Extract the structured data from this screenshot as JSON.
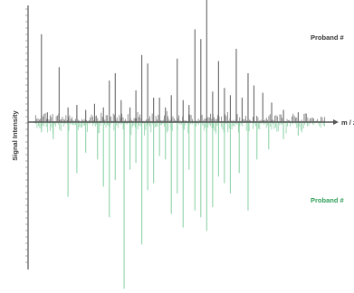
{
  "chart_data": {
    "type": "bar",
    "ylabel": "Signal Intensity",
    "xlabel": "m / z",
    "ylim": [
      -1.0,
      1.0
    ],
    "grid": false,
    "series": [
      {
        "name": "Proband #",
        "color": "#666666",
        "label_color": "#333333",
        "direction": "up",
        "x": [
          0.03,
          0.05,
          0.09,
          0.12,
          0.15,
          0.18,
          0.21,
          0.24,
          0.26,
          0.28,
          0.3,
          0.33,
          0.35,
          0.37,
          0.39,
          0.41,
          0.43,
          0.45,
          0.47,
          0.49,
          0.51,
          0.53,
          0.55,
          0.57,
          0.59,
          0.61,
          0.63,
          0.65,
          0.67,
          0.69,
          0.71,
          0.73,
          0.75,
          0.78,
          0.81,
          0.85,
          0.9
        ],
        "values": [
          0.72,
          0.08,
          0.45,
          0.12,
          0.14,
          0.1,
          0.15,
          0.12,
          0.34,
          0.4,
          0.18,
          0.12,
          0.26,
          0.55,
          0.48,
          0.2,
          0.2,
          0.12,
          0.22,
          0.52,
          0.18,
          0.14,
          0.76,
          0.68,
          1.0,
          0.25,
          0.5,
          0.28,
          0.22,
          0.6,
          0.2,
          0.4,
          0.3,
          0.24,
          0.16,
          0.1,
          0.08
        ]
      },
      {
        "name": "Proband #",
        "color": "#8fd3a9",
        "label_color": "#2e9e57",
        "direction": "down",
        "x": [
          0.03,
          0.07,
          0.12,
          0.15,
          0.18,
          0.22,
          0.24,
          0.26,
          0.28,
          0.31,
          0.33,
          0.35,
          0.37,
          0.39,
          0.41,
          0.43,
          0.45,
          0.47,
          0.49,
          0.51,
          0.53,
          0.55,
          0.57,
          0.59,
          0.61,
          0.63,
          0.65,
          0.67,
          0.7,
          0.73,
          0.76,
          0.8,
          0.85,
          0.9
        ],
        "values": [
          0.06,
          0.1,
          0.44,
          0.3,
          0.18,
          0.22,
          0.38,
          0.56,
          0.34,
          0.98,
          0.28,
          0.24,
          0.72,
          0.4,
          0.36,
          0.2,
          0.22,
          0.54,
          0.42,
          0.62,
          0.28,
          0.52,
          0.56,
          0.64,
          0.5,
          0.32,
          0.36,
          0.42,
          0.3,
          0.52,
          0.22,
          0.16,
          0.1,
          0.08
        ]
      }
    ]
  }
}
